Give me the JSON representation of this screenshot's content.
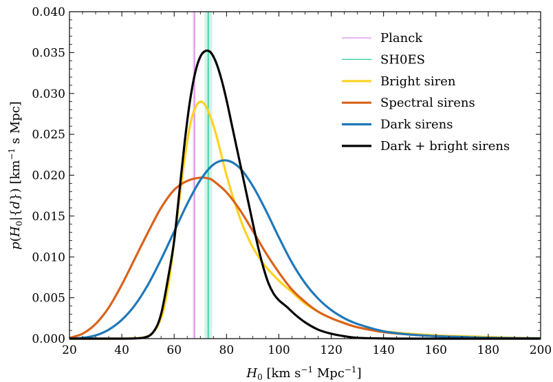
{
  "chart_data": {
    "type": "line",
    "xlabel": "H_0 [km s^-1 Mpc^-1]",
    "ylabel": "p(H_0|{d}) [km^-1 s Mpc]",
    "xlim": [
      20,
      200
    ],
    "ylim": [
      0,
      0.04
    ],
    "x_ticks": [
      20,
      40,
      60,
      80,
      100,
      120,
      140,
      160,
      180,
      200
    ],
    "y_ticks": [
      "0.000",
      "0.005",
      "0.010",
      "0.015",
      "0.020",
      "0.025",
      "0.030",
      "0.035",
      "0.040"
    ],
    "legend_position": "top-right",
    "bands": [
      {
        "name": "Planck",
        "x_low": 67.0,
        "x_high": 68.3,
        "center": 67.7,
        "color": "#dd88ee"
      },
      {
        "name": "SH0ES",
        "x_low": 71.6,
        "x_high": 74.5,
        "center": 73.0,
        "color": "#2ec99a"
      }
    ],
    "series": [
      {
        "name": "Bright siren",
        "color": "#ffd21f",
        "points": [
          [
            20,
            0
          ],
          [
            40,
            0
          ],
          [
            50,
            0.0003
          ],
          [
            55,
            0.0025
          ],
          [
            58,
            0.007
          ],
          [
            60,
            0.012
          ],
          [
            62,
            0.017
          ],
          [
            64,
            0.022
          ],
          [
            66,
            0.026
          ],
          [
            68,
            0.0282
          ],
          [
            70,
            0.029
          ],
          [
            72,
            0.0285
          ],
          [
            74,
            0.027
          ],
          [
            76,
            0.025
          ],
          [
            78,
            0.0225
          ],
          [
            80,
            0.02
          ],
          [
            82,
            0.0178
          ],
          [
            84,
            0.0158
          ],
          [
            86,
            0.014
          ],
          [
            88,
            0.0125
          ],
          [
            90,
            0.0112
          ],
          [
            94,
            0.0092
          ],
          [
            100,
            0.0071
          ],
          [
            105,
            0.0057
          ],
          [
            110,
            0.0043
          ],
          [
            115,
            0.0033
          ],
          [
            120,
            0.0025
          ],
          [
            125,
            0.0019
          ],
          [
            130,
            0.0014
          ],
          [
            140,
            0.0009
          ],
          [
            150,
            0.0006
          ],
          [
            160,
            0.0004
          ],
          [
            170,
            0.0003
          ],
          [
            180,
            0.0002
          ],
          [
            190,
            0.0001
          ],
          [
            200,
            5e-05
          ]
        ]
      },
      {
        "name": "Spectral sirens",
        "color": "#d9621a",
        "points": [
          [
            20,
            0.0001
          ],
          [
            25,
            0.0006
          ],
          [
            30,
            0.0018
          ],
          [
            35,
            0.0038
          ],
          [
            40,
            0.0066
          ],
          [
            45,
            0.0098
          ],
          [
            50,
            0.013
          ],
          [
            55,
            0.016
          ],
          [
            60,
            0.0182
          ],
          [
            65,
            0.0193
          ],
          [
            70,
            0.0197
          ],
          [
            73,
            0.0196
          ],
          [
            75,
            0.0193
          ],
          [
            80,
            0.0179
          ],
          [
            85,
            0.0158
          ],
          [
            90,
            0.0132
          ],
          [
            95,
            0.0105
          ],
          [
            100,
            0.0081
          ],
          [
            105,
            0.006
          ],
          [
            110,
            0.0045
          ],
          [
            115,
            0.0033
          ],
          [
            120,
            0.0025
          ],
          [
            125,
            0.0019
          ],
          [
            130,
            0.0014
          ],
          [
            140,
            0.0008
          ],
          [
            150,
            0.0005
          ],
          [
            160,
            0.0003
          ],
          [
            170,
            0.0002
          ],
          [
            180,
            0.0001
          ],
          [
            190,
            6e-05
          ],
          [
            200,
            3e-05
          ]
        ]
      },
      {
        "name": "Dark sirens",
        "color": "#1f78b8",
        "points": [
          [
            20,
            0
          ],
          [
            25,
            0.0001
          ],
          [
            30,
            0.0004
          ],
          [
            35,
            0.0011
          ],
          [
            40,
            0.0023
          ],
          [
            45,
            0.0041
          ],
          [
            50,
            0.0066
          ],
          [
            55,
            0.0097
          ],
          [
            60,
            0.0131
          ],
          [
            65,
            0.0165
          ],
          [
            70,
            0.0194
          ],
          [
            75,
            0.0213
          ],
          [
            80,
            0.0218
          ],
          [
            85,
            0.0209
          ],
          [
            90,
            0.0187
          ],
          [
            95,
            0.0157
          ],
          [
            100,
            0.0124
          ],
          [
            105,
            0.0093
          ],
          [
            110,
            0.0068
          ],
          [
            115,
            0.0049
          ],
          [
            120,
            0.0035
          ],
          [
            125,
            0.0025
          ],
          [
            130,
            0.0018
          ],
          [
            140,
            0.0009
          ],
          [
            150,
            0.0005
          ],
          [
            160,
            0.0003
          ],
          [
            170,
            0.0002
          ],
          [
            180,
            0.0001
          ],
          [
            190,
            6e-05
          ],
          [
            200,
            3e-05
          ]
        ]
      },
      {
        "name": "Dark + bright sirens",
        "color": "#000000",
        "points": [
          [
            20,
            0
          ],
          [
            40,
            0
          ],
          [
            48,
            0.0001
          ],
          [
            52,
            0.0008
          ],
          [
            55,
            0.003
          ],
          [
            58,
            0.008
          ],
          [
            60,
            0.012
          ],
          [
            62,
            0.018
          ],
          [
            64,
            0.024
          ],
          [
            66,
            0.029
          ],
          [
            68,
            0.0325
          ],
          [
            70,
            0.0345
          ],
          [
            72,
            0.0352
          ],
          [
            74,
            0.035
          ],
          [
            76,
            0.0338
          ],
          [
            78,
            0.0318
          ],
          [
            80,
            0.0292
          ],
          [
            82,
            0.0262
          ],
          [
            84,
            0.0232
          ],
          [
            86,
            0.0202
          ],
          [
            88,
            0.0172
          ],
          [
            90,
            0.0142
          ],
          [
            92,
            0.0113
          ],
          [
            94,
            0.0088
          ],
          [
            96,
            0.0068
          ],
          [
            98,
            0.0055
          ],
          [
            100,
            0.0047
          ],
          [
            103,
            0.0039
          ],
          [
            106,
            0.003
          ],
          [
            110,
            0.002
          ],
          [
            115,
            0.0011
          ],
          [
            120,
            0.0006
          ],
          [
            125,
            0.0003
          ],
          [
            130,
            0.0001
          ],
          [
            140,
            2e-05
          ],
          [
            150,
            0
          ],
          [
            200,
            0
          ]
        ]
      }
    ]
  }
}
